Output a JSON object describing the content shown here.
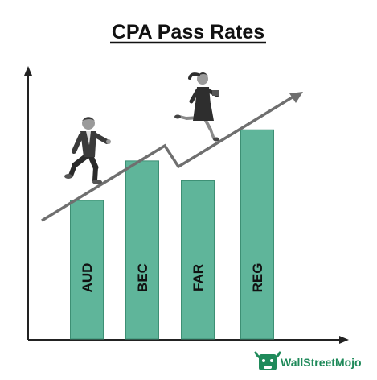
{
  "chart_data": {
    "type": "bar",
    "title": "CPA Pass Rates",
    "categories": [
      "AUD",
      "BEC",
      "FAR",
      "REG"
    ],
    "values": [
      49,
      63,
      56,
      74
    ],
    "ylim": [
      0,
      100
    ],
    "xlabel": "",
    "ylabel": "",
    "grid": false,
    "legend": "none",
    "bar_color": "#5fb59a",
    "bar_stroke": "#3d8f74"
  },
  "annotations": {
    "trend_arrow": true,
    "figures": [
      "man-running-figure",
      "woman-running-figure"
    ]
  },
  "brand": {
    "name": "WallStreetMojo",
    "color": "#1f8a5a",
    "icon": "bull-logo-icon"
  }
}
